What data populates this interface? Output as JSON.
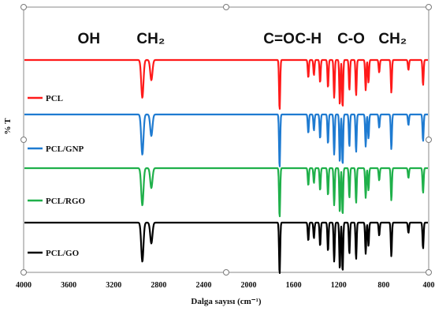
{
  "chart_data": {
    "type": "line",
    "title": "",
    "xlabel": "Dalga sayısı (cm⁻¹)",
    "ylabel": "% T",
    "xlim": [
      4000,
      400
    ],
    "x_reversed": true,
    "x_ticks": [
      "4000",
      "3600",
      "3200",
      "2800",
      "2400",
      "2000",
      "1600",
      "1200",
      "800",
      "400"
    ],
    "annotations": [
      {
        "text": "OH",
        "x": 3420
      },
      {
        "text": "CH₂",
        "x": 2870
      },
      {
        "text": "C=O",
        "x": 1730
      },
      {
        "text": "C-H",
        "x": 1470
      },
      {
        "text": "C-O",
        "x": 1090
      },
      {
        "text": "CH₂",
        "x": 720
      }
    ],
    "grid": false,
    "legend_placement": "left, under each trace",
    "peaks": [
      {
        "x": 2945,
        "depth": 0.75
      },
      {
        "x": 2865,
        "depth": 0.4
      },
      {
        "x": 1725,
        "depth": 1.0
      },
      {
        "x": 1470,
        "depth": 0.35
      },
      {
        "x": 1420,
        "depth": 0.3
      },
      {
        "x": 1365,
        "depth": 0.45
      },
      {
        "x": 1295,
        "depth": 0.55
      },
      {
        "x": 1240,
        "depth": 0.75
      },
      {
        "x": 1190,
        "depth": 0.9
      },
      {
        "x": 1165,
        "depth": 0.95
      },
      {
        "x": 1105,
        "depth": 0.6
      },
      {
        "x": 1045,
        "depth": 0.7
      },
      {
        "x": 960,
        "depth": 0.6
      },
      {
        "x": 935,
        "depth": 0.45
      },
      {
        "x": 840,
        "depth": 0.25
      },
      {
        "x": 732,
        "depth": 0.65
      },
      {
        "x": 580,
        "depth": 0.2
      },
      {
        "x": 450,
        "depth": 0.5
      }
    ],
    "series": [
      {
        "name": "PCL",
        "color": "#ff1a1a"
      },
      {
        "name": "PCL/GNP",
        "color": "#1f7bd1"
      },
      {
        "name": "PCL/RGO",
        "color": "#1fb04a"
      },
      {
        "name": "PCL/GO",
        "color": "#000000"
      }
    ]
  }
}
